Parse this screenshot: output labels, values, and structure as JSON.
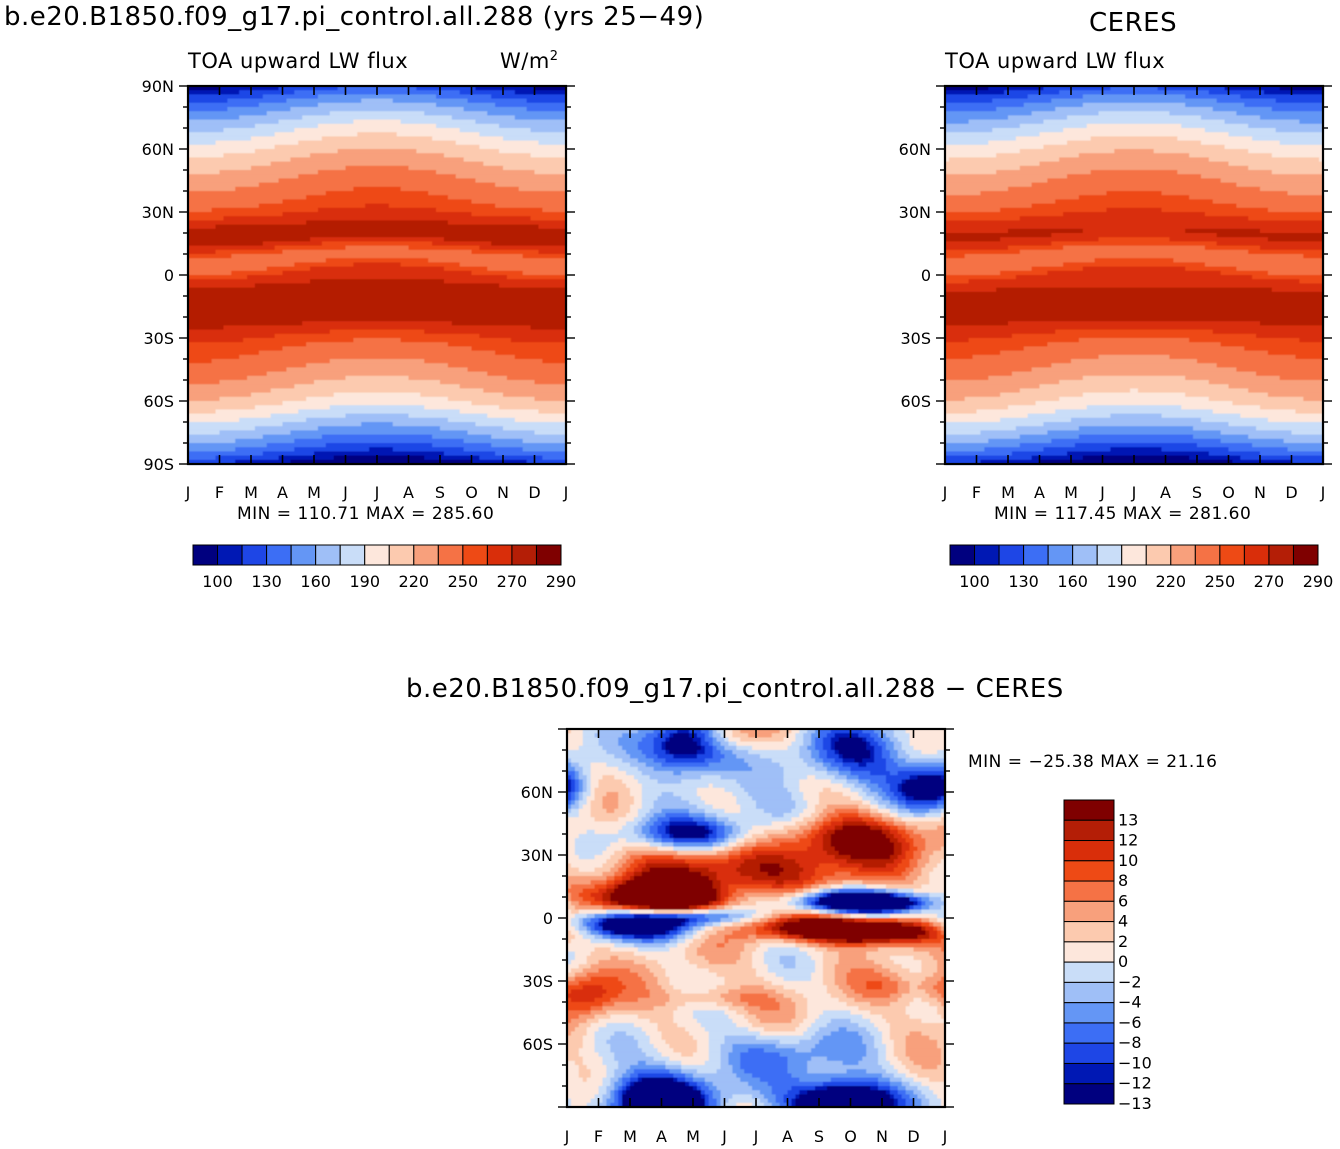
{
  "titles": {
    "left_main": "b.e20.B1850.f09_g17.pi_control.all.288 (yrs 25−49)",
    "right_main": "CERES",
    "diff_main": "b.e20.B1850.f09_g17.pi_control.all.288 − CERES",
    "variable": "TOA upward LW flux",
    "units": "W/m",
    "units_exp": "2"
  },
  "stats": {
    "left": "MIN = 110.71  MAX = 285.60",
    "right": "MIN = 117.45  MAX = 281.60",
    "diff": "MIN = −25.38  MAX =   21.16"
  },
  "chart_data": [
    {
      "type": "heatmap",
      "name": "model",
      "x_ticks": [
        "J",
        "F",
        "M",
        "A",
        "M",
        "J",
        "J",
        "A",
        "S",
        "O",
        "N",
        "D",
        "J"
      ],
      "y_ticks": [
        "90N",
        "60N",
        "30N",
        "0",
        "30S",
        "60S",
        "90S"
      ],
      "ylim": [
        -90,
        90
      ],
      "colorbar_labels": [
        "100",
        "130",
        "160",
        "190",
        "220",
        "250",
        "270",
        "290"
      ],
      "min": 110.71,
      "max": 285.6
    },
    {
      "type": "heatmap",
      "name": "ceres",
      "x_ticks": [
        "J",
        "F",
        "M",
        "A",
        "M",
        "J",
        "J",
        "A",
        "S",
        "O",
        "N",
        "D",
        "J"
      ],
      "y_ticks": [
        "60N",
        "30N",
        "0",
        "30S",
        "60S"
      ],
      "ylim": [
        -90,
        90
      ],
      "colorbar_labels": [
        "100",
        "130",
        "160",
        "190",
        "220",
        "250",
        "270",
        "290"
      ],
      "min": 117.45,
      "max": 281.6
    },
    {
      "type": "heatmap",
      "name": "difference",
      "x_ticks": [
        "J",
        "F",
        "M",
        "A",
        "M",
        "J",
        "J",
        "A",
        "S",
        "O",
        "N",
        "D",
        "J"
      ],
      "y_ticks": [
        "60N",
        "30N",
        "0",
        "30S",
        "60S"
      ],
      "ylim": [
        -90,
        90
      ],
      "colorbar_labels": [
        "13",
        "12",
        "10",
        "8",
        "6",
        "4",
        "2",
        "0",
        "−2",
        "−4",
        "−6",
        "−8",
        "−10",
        "−12",
        "−13"
      ],
      "min": -25.38,
      "max": 21.16
    }
  ],
  "palette": [
    "#00007f",
    "#0018b4",
    "#1e46e6",
    "#3c6ef5",
    "#6496f5",
    "#9fbff7",
    "#c9ddf8",
    "#fde7dc",
    "#fccaaf",
    "#f8a07c",
    "#f57245",
    "#ee4a15",
    "#d92e0a",
    "#b41e06",
    "#7f0000"
  ]
}
